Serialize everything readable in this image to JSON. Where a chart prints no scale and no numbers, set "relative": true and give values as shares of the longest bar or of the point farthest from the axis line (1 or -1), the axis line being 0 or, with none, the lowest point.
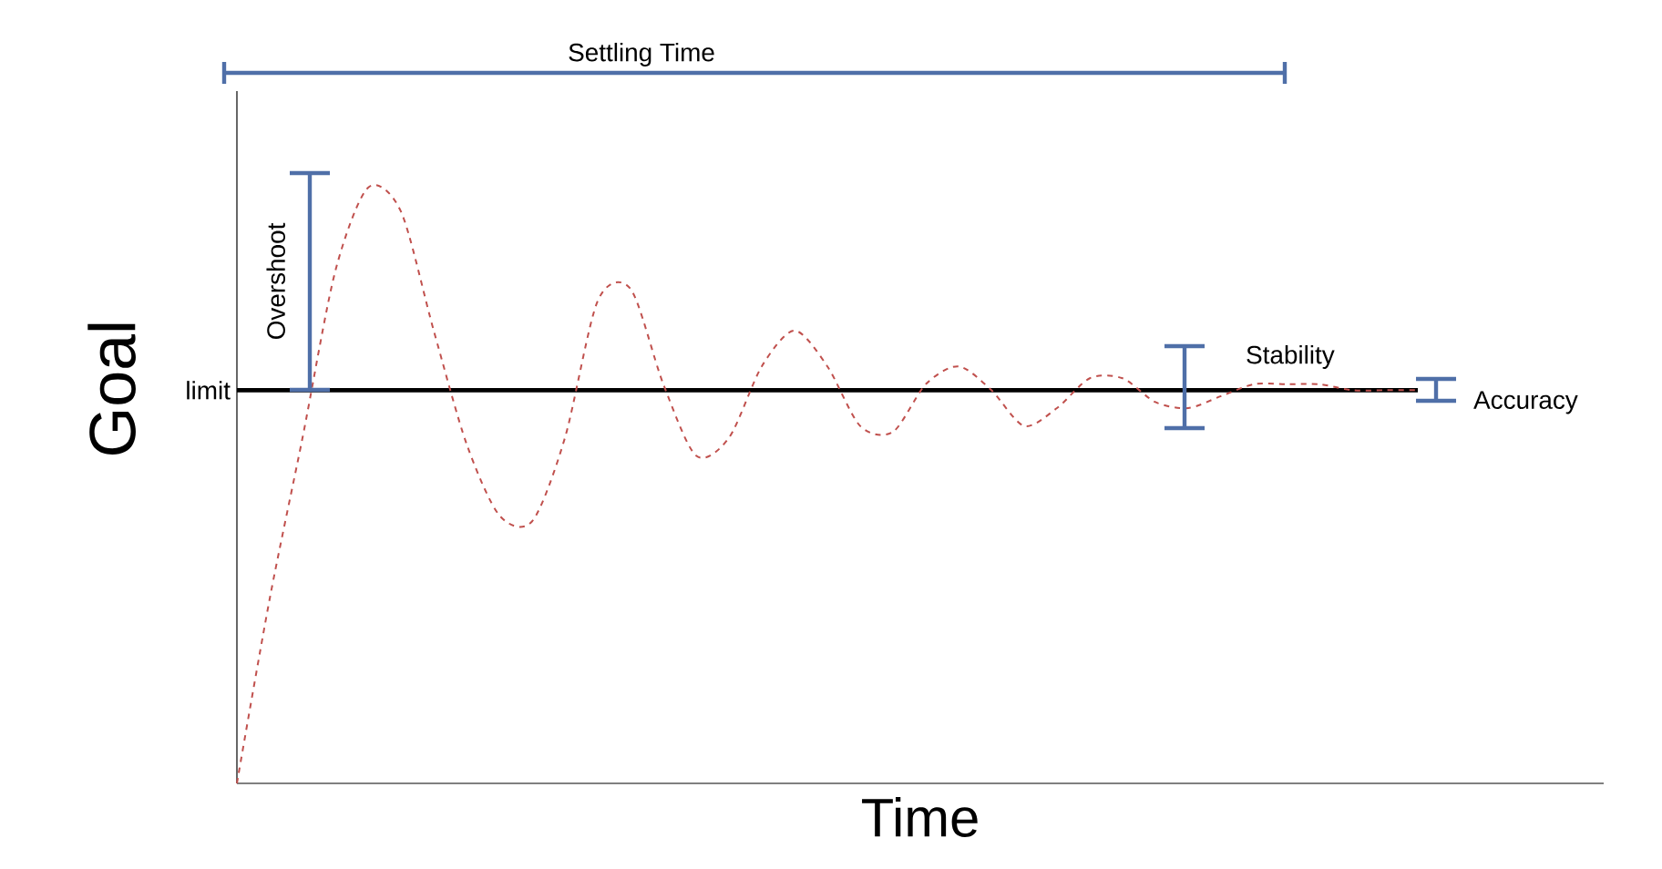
{
  "chart_data": {
    "type": "line",
    "relative": true,
    "xlabel": "Time",
    "ylabel": "Goal",
    "line_style": "dashed",
    "categories": [
      null,
      null,
      null,
      null,
      null,
      null,
      null,
      null,
      null,
      null,
      null,
      null,
      null,
      null,
      null,
      null,
      null,
      null,
      null,
      null,
      null,
      null,
      null,
      null,
      null,
      null,
      null,
      null,
      null,
      null,
      null,
      null,
      null,
      null,
      null,
      null,
      null
    ],
    "series": [
      {
        "color": "#c0504d",
        "values": [
          0,
          0.31,
          0.58,
          0.86,
          1.0,
          0.96,
          0.76,
          0.57,
          0.45,
          0.44,
          0.58,
          0.81,
          0.83,
          0.67,
          0.55,
          0.58,
          0.7,
          0.76,
          0.7,
          0.6,
          0.59,
          0.67,
          0.7,
          0.66,
          0.6,
          0.63,
          0.68,
          0.68,
          0.64,
          0.63,
          0.65,
          0.67,
          0.67,
          0.67,
          0.66,
          0.66,
          0.66
        ]
      }
    ],
    "ref_lines": [
      {
        "axis": "y",
        "value": 0.66,
        "label": "limit",
        "color": "#000000"
      }
    ],
    "annotations": [
      "Settling Time",
      "Overshoot",
      "Stability",
      "Accuracy"
    ]
  }
}
